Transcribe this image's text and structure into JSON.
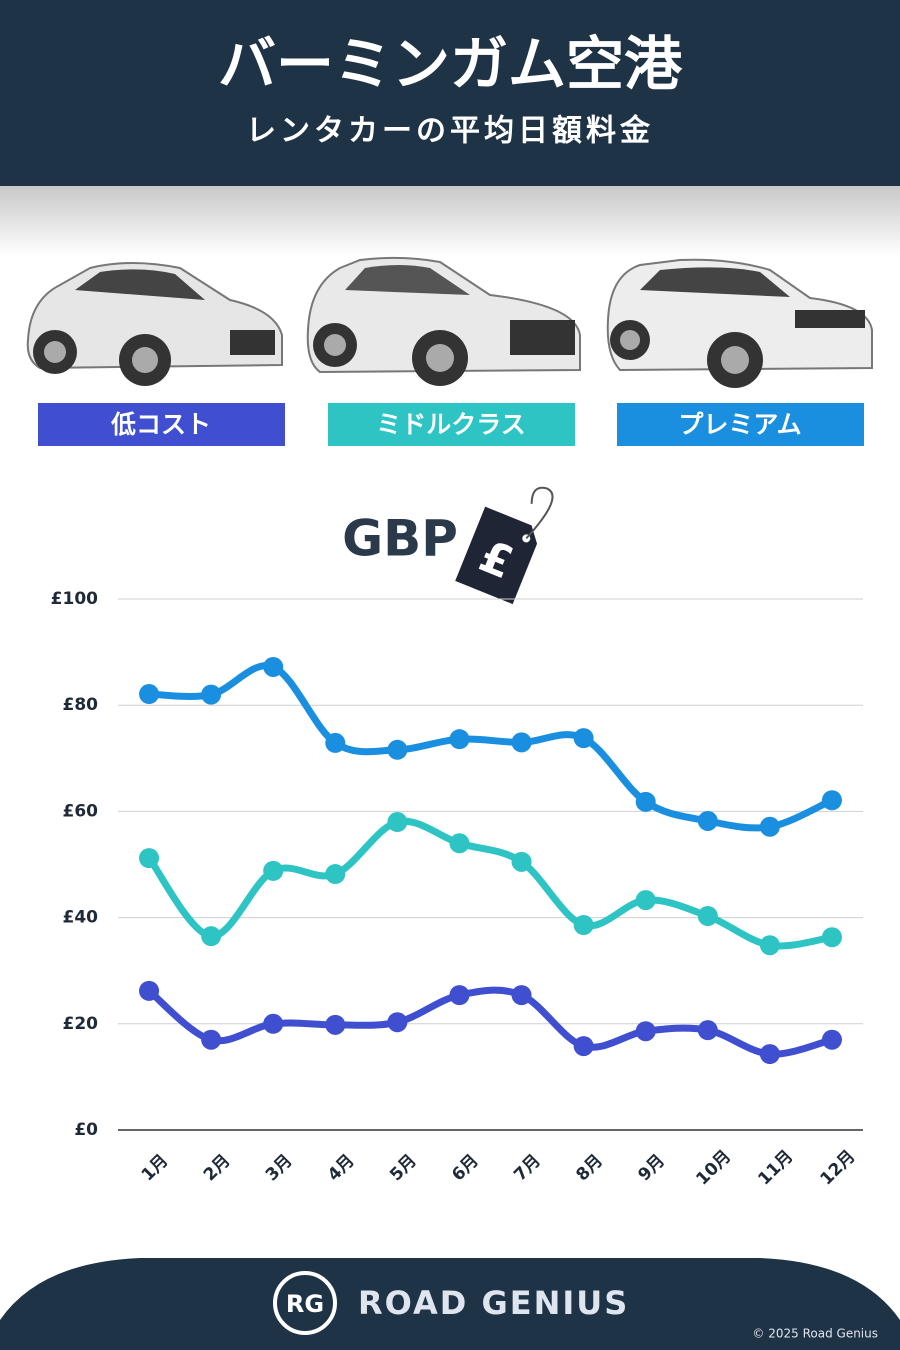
{
  "chart_data": {
    "type": "line",
    "title": "バーミンガム空港",
    "subtitle": "レンタカーの平均日額料金",
    "unit_label": "GBP",
    "currency_symbol": "£",
    "categories": [
      "1月",
      "2月",
      "3月",
      "4月",
      "5月",
      "6月",
      "7月",
      "8月",
      "9月",
      "10月",
      "11月",
      "12月"
    ],
    "series": [
      {
        "name": "低コスト",
        "color": "#3f4fd0",
        "values": [
          26.2,
          17,
          20,
          19.8,
          20.3,
          25.4,
          25.4,
          15.8,
          18.6,
          18.8,
          14.3,
          17
        ]
      },
      {
        "name": "ミドルクラス",
        "color": "#2ec4c4",
        "values": [
          51.2,
          36.5,
          48.8,
          48.2,
          58,
          54,
          50.5,
          38.6,
          43.3,
          40.3,
          34.8,
          36.3
        ]
      },
      {
        "name": "プレミアム",
        "color": "#1a8fe0",
        "values": [
          82.1,
          82,
          87.2,
          72.9,
          71.6,
          73.6,
          73,
          73.8,
          61.8,
          58.2,
          57.1,
          62.1
        ]
      }
    ],
    "ylim": [
      0,
      100
    ],
    "yticks": [
      {
        "value": 0,
        "label": "£0"
      },
      {
        "value": 20,
        "label": "£20"
      },
      {
        "value": 40,
        "label": "£40"
      },
      {
        "value": 60,
        "label": "£60"
      },
      {
        "value": 80,
        "label": "£80"
      },
      {
        "value": 100,
        "label": "£100"
      }
    ],
    "grid": true
  },
  "footer": {
    "logo": "RG",
    "brand": "ROAD GENIUS",
    "copyright": "© 2025 Road Genius"
  }
}
